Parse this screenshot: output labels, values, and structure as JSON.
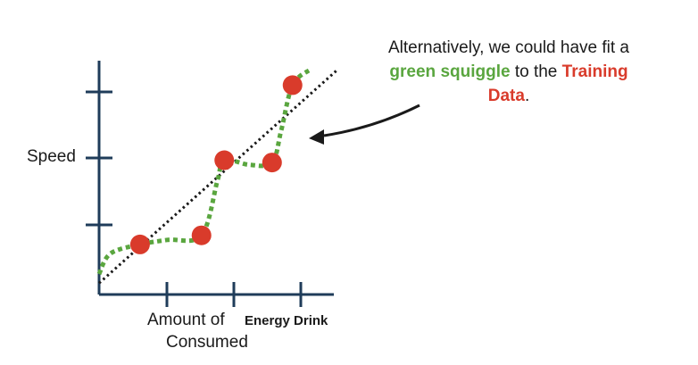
{
  "chart_data": {
    "type": "scatter",
    "title": "",
    "ylabel": "Speed",
    "xlabel_parts": [
      "Amount of",
      "Energy Drink",
      "Consumed"
    ],
    "x_ticks": 3,
    "y_ticks": 3,
    "grid": false,
    "points": [
      {
        "x": 0.18,
        "y": 0.22
      },
      {
        "x": 0.45,
        "y": 0.26
      },
      {
        "x": 0.55,
        "y": 0.59
      },
      {
        "x": 0.76,
        "y": 0.58
      },
      {
        "x": 0.85,
        "y": 0.92
      }
    ],
    "trend_line": {
      "style": "dotted",
      "color": "#1a1a1a",
      "from": [
        0,
        0.05
      ],
      "to": [
        1.05,
        0.99
      ]
    },
    "squiggle": {
      "style": "dashed",
      "color": "#5aa63f",
      "points": [
        [
          0,
          0.09
        ],
        [
          0.05,
          0.18
        ],
        [
          0.18,
          0.22
        ],
        [
          0.3,
          0.24
        ],
        [
          0.45,
          0.26
        ],
        [
          0.52,
          0.5
        ],
        [
          0.55,
          0.59
        ],
        [
          0.66,
          0.57
        ],
        [
          0.76,
          0.58
        ],
        [
          0.8,
          0.72
        ],
        [
          0.85,
          0.92
        ],
        [
          0.93,
          0.99
        ]
      ]
    },
    "marker_color": "#d93b2b"
  },
  "annotation": {
    "line1": "Alternatively, we could have fit a",
    "green_text": "green squiggle",
    "mid_text": " to the ",
    "red_text": "Training",
    "line3_red": "Data",
    "line3_tail": "."
  },
  "colors": {
    "green": "#5aa63f",
    "red": "#d93b2b",
    "axis": "#1f3c5a"
  }
}
